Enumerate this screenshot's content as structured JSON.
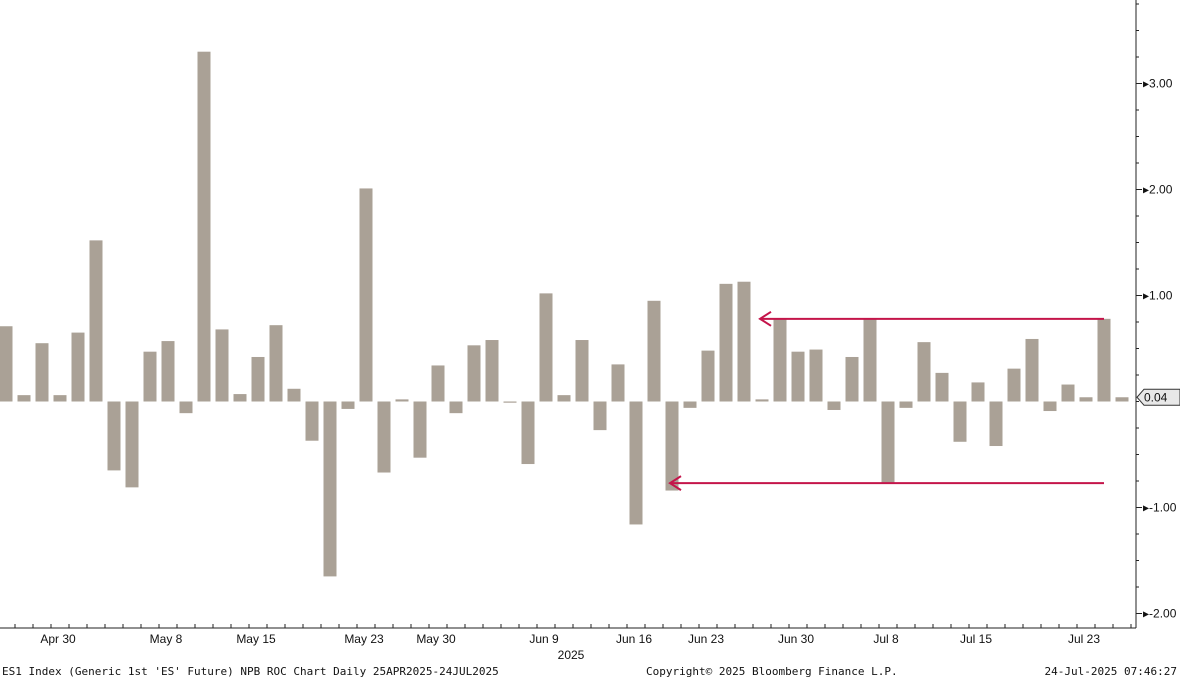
{
  "chart_data": {
    "type": "bar",
    "bar_color": "#aaa196",
    "annotation_color": "#c4144a",
    "ylim": [
      -2.1,
      3.8
    ],
    "y_ticks": [
      3.0,
      2.0,
      1.0,
      -1.0,
      -2.0
    ],
    "y_tick_labels": [
      "3.00",
      "2.00",
      "1.00",
      "-1.00",
      "-2.00"
    ],
    "x_tick_labels": [
      "Apr 30",
      "May 8",
      "May 15",
      "May 23",
      "May 30",
      "Jun 9",
      "Jun 16",
      "Jun 23",
      "Jun 30",
      "Jul 8",
      "Jul 15",
      "Jul 23"
    ],
    "x_tick_bar_index": [
      3,
      9,
      14,
      20,
      24,
      30,
      35,
      39,
      44,
      49,
      54,
      60
    ],
    "year_label": "2025",
    "last_value": 0.04,
    "last_value_label": "0.04",
    "values": [
      0.71,
      0.06,
      0.55,
      0.06,
      0.65,
      1.52,
      -0.65,
      -0.81,
      0.47,
      0.57,
      -0.11,
      3.3,
      0.68,
      0.07,
      0.42,
      0.72,
      0.12,
      -0.37,
      -1.65,
      -0.07,
      2.01,
      -0.67,
      0.02,
      -0.53,
      0.34,
      -0.11,
      0.53,
      0.58,
      -0.01,
      -0.59,
      1.02,
      0.06,
      0.58,
      -0.27,
      0.35,
      -1.16,
      0.95,
      -0.84,
      -0.06,
      0.48,
      1.11,
      1.13,
      0.02,
      0.78,
      0.47,
      0.49,
      -0.08,
      0.42,
      0.78,
      -0.77,
      -0.06,
      0.56,
      0.27,
      -0.38,
      0.18,
      -0.42,
      0.31,
      0.59,
      -0.09,
      0.16,
      0.04,
      0.78,
      0.04
    ],
    "annotations": [
      {
        "type": "arrow-left",
        "y": 0.78,
        "from_bar": 61,
        "to_bar": 42
      },
      {
        "type": "arrow-left",
        "y": -0.77,
        "from_bar": 61,
        "to_bar": 37
      }
    ]
  },
  "footer": {
    "left": "ES1 Index (Generic 1st 'ES' Future) NPB ROC Chart  Daily 25APR2025-24JUL2025",
    "center": "Copyright© 2025 Bloomberg Finance L.P.",
    "right": "24-Jul-2025 07:46:27"
  }
}
